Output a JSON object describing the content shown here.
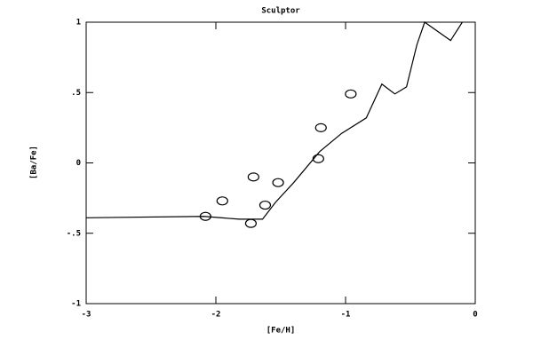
{
  "chart_data": {
    "type": "scatter",
    "title": "Sculptor",
    "x_label": "[Fe/H]",
    "y_label": "[Ba/Fe]",
    "xlim": [
      -3,
      0
    ],
    "ylim": [
      -1,
      1
    ],
    "xticks": [
      -3,
      -2,
      -1,
      0
    ],
    "yticks": [
      -1,
      {
        "value": -0.5,
        "label": "-.5"
      },
      0,
      {
        "value": 0.5,
        "label": ".5"
      },
      1
    ],
    "color": "#000000",
    "series": [
      {
        "mode": "markers",
        "marker": "circle",
        "x": [
          -2.08,
          -1.95,
          -1.71,
          -1.73,
          -1.62,
          -1.52,
          -1.21,
          -1.19,
          -0.96
        ],
        "y": [
          -0.38,
          -0.27,
          -0.1,
          -0.43,
          -0.3,
          -0.14,
          0.03,
          0.25,
          0.49
        ]
      },
      {
        "mode": "line",
        "x": [
          -3,
          -2.09,
          -1.82,
          -1.64,
          -1.54,
          -1.4,
          -1.2,
          -1.03,
          -0.84,
          -0.72,
          -0.62,
          -0.53,
          -0.45,
          -0.39,
          -0.19,
          -0.1
        ],
        "y": [
          -0.39,
          -0.38,
          -0.4,
          -0.4,
          -0.28,
          -0.14,
          0.08,
          0.21,
          0.32,
          0.56,
          0.49,
          0.54,
          0.84,
          1.0,
          0.87,
          1.0
        ]
      }
    ]
  }
}
